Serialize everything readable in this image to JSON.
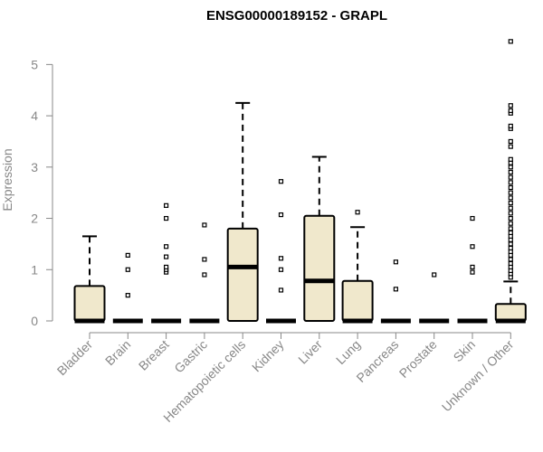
{
  "chart_data": {
    "type": "boxplot",
    "title": "ENSG00000189152 - GRAPL",
    "ylabel": "Expression",
    "xlabel": "",
    "ylim": [
      0,
      5.5
    ],
    "yticks": [
      0,
      1,
      2,
      3,
      4,
      5
    ],
    "grid": false,
    "legend": "none",
    "colors": {
      "box_fill": "#f0e8cc",
      "box_stroke": "#000000",
      "axis": "#888888"
    },
    "categories": [
      "Bladder",
      "Brain",
      "Breast",
      "Gastric",
      "Hematopoietic cells",
      "Kidney",
      "Liver",
      "Lung",
      "Pancreas",
      "Prostate",
      "Skin",
      "Unknown / Other"
    ],
    "boxes": [
      {
        "q1": 0,
        "median": 0,
        "q3": 0.68,
        "whisker_low": 0,
        "whisker_high": 1.65,
        "outliers": []
      },
      {
        "q1": 0,
        "median": 0,
        "q3": 0,
        "whisker_low": 0,
        "whisker_high": 0,
        "outliers": [
          0.5,
          1.0,
          1.28
        ]
      },
      {
        "q1": 0,
        "median": 0,
        "q3": 0,
        "whisker_low": 0,
        "whisker_high": 0,
        "outliers": [
          0.95,
          1.0,
          1.05,
          1.25,
          1.45,
          2.0,
          2.25
        ]
      },
      {
        "q1": 0,
        "median": 0,
        "q3": 0,
        "whisker_low": 0,
        "whisker_high": 0,
        "outliers": [
          0.9,
          1.2,
          1.87
        ]
      },
      {
        "q1": 0,
        "median": 1.05,
        "q3": 1.8,
        "whisker_low": 0,
        "whisker_high": 4.25,
        "outliers": []
      },
      {
        "q1": 0,
        "median": 0,
        "q3": 0,
        "whisker_low": 0,
        "whisker_high": 0,
        "outliers": [
          0.6,
          1.0,
          1.22,
          2.07,
          2.72
        ]
      },
      {
        "q1": 0,
        "median": 0.78,
        "q3": 2.05,
        "whisker_low": 0,
        "whisker_high": 3.2,
        "outliers": []
      },
      {
        "q1": 0,
        "median": 0,
        "q3": 0.78,
        "whisker_low": 0,
        "whisker_high": 1.83,
        "outliers": [
          2.12
        ]
      },
      {
        "q1": 0,
        "median": 0,
        "q3": 0,
        "whisker_low": 0,
        "whisker_high": 0,
        "outliers": [
          0.62,
          1.15
        ]
      },
      {
        "q1": 0,
        "median": 0,
        "q3": 0,
        "whisker_low": 0,
        "whisker_high": 0,
        "outliers": [
          0.9
        ]
      },
      {
        "q1": 0,
        "median": 0,
        "q3": 0,
        "whisker_low": 0,
        "whisker_high": 0,
        "outliers": [
          0.95,
          1.05,
          1.45,
          2.0
        ]
      },
      {
        "q1": 0,
        "median": 0,
        "q3": 0.33,
        "whisker_low": 0,
        "whisker_high": 0.77,
        "outliers": [
          0.85,
          0.92,
          0.98,
          1.05,
          1.12,
          1.2,
          1.28,
          1.35,
          1.42,
          1.5,
          1.58,
          1.65,
          1.72,
          1.8,
          1.9,
          2.0,
          2.1,
          2.2,
          2.3,
          2.4,
          2.5,
          2.6,
          2.7,
          2.8,
          2.9,
          3.0,
          3.08,
          3.15,
          3.4,
          3.5,
          3.75,
          3.8,
          4.05,
          4.1,
          4.2,
          5.45
        ]
      }
    ]
  }
}
